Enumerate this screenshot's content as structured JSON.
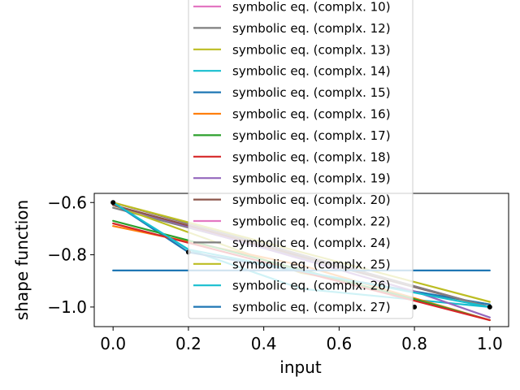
{
  "chart_data": {
    "type": "line",
    "title": "",
    "xlabel": "input",
    "ylabel": "shape function",
    "xlim": [
      -0.05,
      1.05
    ],
    "ylim": [
      -1.075,
      -0.565
    ],
    "xticks": [
      0.0,
      0.2,
      0.4,
      0.6,
      0.8,
      1.0
    ],
    "xtick_labels": [
      "0.0",
      "0.2",
      "0.4",
      "0.6",
      "0.8",
      "1.0"
    ],
    "yticks": [
      -0.6,
      -0.8,
      -1.0
    ],
    "ytick_labels": [
      "−0.6",
      "−0.8",
      "−1.0"
    ],
    "grid": false,
    "legend_placement": "upper center (overflowing above axes)",
    "data_points": {
      "x": [
        0.0,
        0.2,
        0.8,
        1.0
      ],
      "y": [
        -0.6,
        -0.79,
        -1.0,
        -1.0
      ]
    },
    "series": [
      {
        "name": "symbolic eq. (complx. 10)",
        "color": "#e377c2",
        "x": [
          0.0,
          1.0
        ],
        "y": [
          -0.6,
          -1.0
        ]
      },
      {
        "name": "symbolic eq. (complx. 12)",
        "color": "#7f7f7f",
        "x": [
          0.0,
          1.0
        ],
        "y": [
          -0.62,
          -1.0
        ]
      },
      {
        "name": "symbolic eq. (complx. 13)",
        "color": "#bcbd22",
        "x": [
          0.0,
          0.5,
          1.0
        ],
        "y": [
          -0.61,
          -0.87,
          -0.99
        ]
      },
      {
        "name": "symbolic eq. (complx. 14)",
        "color": "#17becf",
        "x": [
          0.0,
          0.2,
          0.5,
          1.0
        ],
        "y": [
          -0.6,
          -0.78,
          -0.93,
          -1.0
        ]
      },
      {
        "name": "symbolic eq. (complx. 15)",
        "color": "#1f77b4",
        "x": [
          0.0,
          0.2,
          1.0
        ],
        "y": [
          -0.6,
          -0.79,
          -0.99
        ]
      },
      {
        "name": "symbolic eq. (complx. 16)",
        "color": "#ff7f0e",
        "x": [
          0.0,
          0.5,
          1.0
        ],
        "y": [
          -0.69,
          -0.84,
          -1.05
        ]
      },
      {
        "name": "symbolic eq. (complx. 17)",
        "color": "#2ca02c",
        "x": [
          0.0,
          0.8,
          1.0
        ],
        "y": [
          -0.67,
          -0.97,
          -1.05
        ]
      },
      {
        "name": "symbolic eq. (complx. 18)",
        "color": "#d62728",
        "x": [
          0.0,
          1.0
        ],
        "y": [
          -0.68,
          -1.05
        ]
      },
      {
        "name": "symbolic eq. (complx. 19)",
        "color": "#9467bd",
        "x": [
          0.0,
          0.8,
          1.0
        ],
        "y": [
          -0.61,
          -0.94,
          -1.04
        ]
      },
      {
        "name": "symbolic eq. (complx. 20)",
        "color": "#8c564b",
        "x": [
          0.0,
          1.0
        ],
        "y": [
          -0.61,
          -1.0
        ]
      },
      {
        "name": "symbolic eq. (complx. 22)",
        "color": "#e377c2",
        "x": [
          0.0,
          1.0
        ],
        "y": [
          -0.6,
          -1.0
        ]
      },
      {
        "name": "symbolic eq. (complx. 24)",
        "color": "#7f7f7f",
        "x": [
          0.0,
          1.0
        ],
        "y": [
          -0.6,
          -1.0
        ]
      },
      {
        "name": "symbolic eq. (complx. 25)",
        "color": "#bcbd22",
        "x": [
          0.0,
          1.0
        ],
        "y": [
          -0.6,
          -0.98
        ]
      },
      {
        "name": "symbolic eq. (complx. 26)",
        "color": "#17becf",
        "x": [
          0.0,
          0.2,
          1.0
        ],
        "y": [
          -0.6,
          -0.78,
          -1.0
        ]
      },
      {
        "name": "symbolic eq. (complx. 27)",
        "color": "#1f77b4",
        "x": [
          0.0,
          1.0
        ],
        "y": [
          -0.86,
          -0.86
        ]
      }
    ]
  }
}
